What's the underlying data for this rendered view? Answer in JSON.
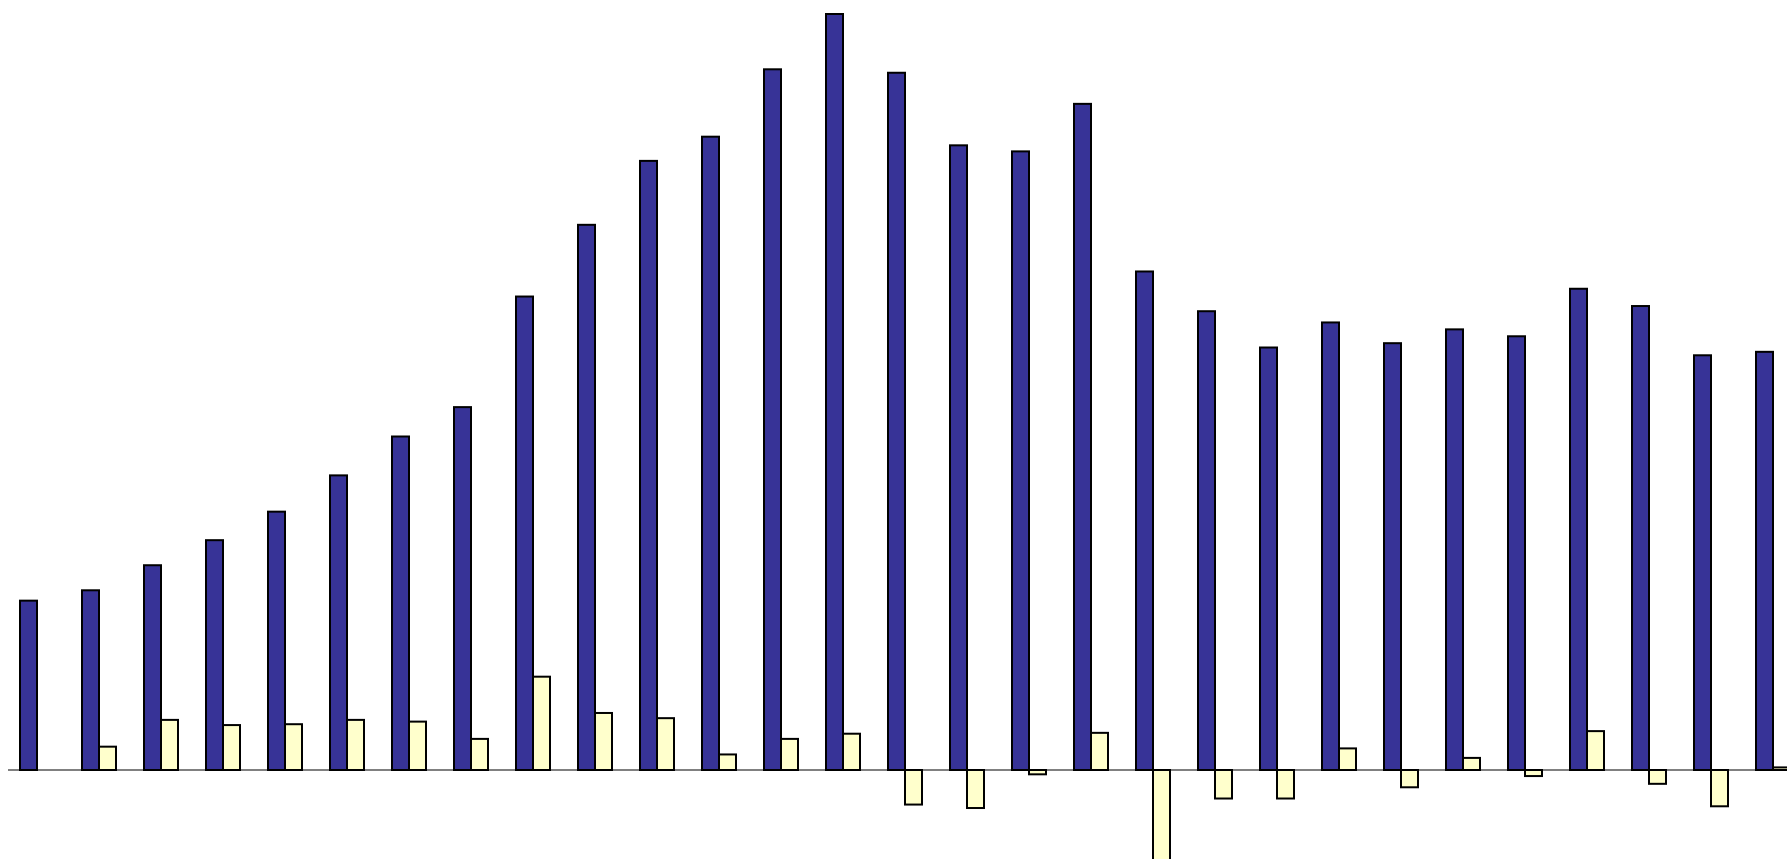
{
  "chart_data": {
    "type": "bar",
    "title": "",
    "xlabel": "",
    "ylabel": "",
    "grid": false,
    "legend": "none",
    "ylim": [
      -100,
      870
    ],
    "colors": {
      "series_1": "#373397",
      "series_2": "#ffffcc",
      "outline": "#000000",
      "baseline": "#000000"
    },
    "series": [
      {
        "values": [
          196,
          208,
          237,
          266,
          299,
          341,
          386,
          420,
          548,
          631,
          705,
          733,
          811,
          875,
          807,
          723,
          716,
          771,
          577,
          531,
          489,
          518,
          494,
          510,
          502,
          557,
          537,
          480,
          484
        ]
      },
      {
        "values": [
          0,
          27,
          58,
          52,
          53,
          58,
          56,
          36,
          108,
          66,
          60,
          18,
          36,
          42,
          -40,
          -44,
          -5,
          43,
          -110,
          -33,
          -33,
          25,
          -20,
          14,
          -7,
          45,
          -16,
          -42,
          3
        ]
      }
    ]
  }
}
